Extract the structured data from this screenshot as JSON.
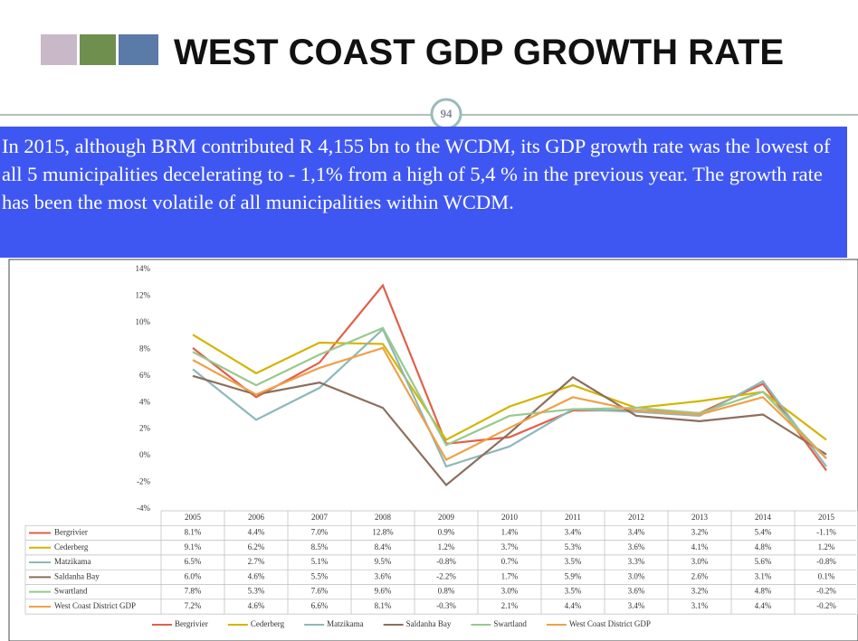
{
  "header": {
    "title": "WEST COAST GDP GROWTH RATE",
    "page_number": "94",
    "summary": "In 2015, although BRM contributed R 4,155 bn to the WCDM, its GDP growth rate was the lowest of all 5 municipalities decelerating to - 1,1% from a high of 5,4 % in the previous year.  The growth rate has been the most volatile of all municipalities within WCDM."
  },
  "chart_data": {
    "type": "line",
    "categories": [
      "2005",
      "2006",
      "2007",
      "2008",
      "2009",
      "2010",
      "2011",
      "2012",
      "2013",
      "2014",
      "2015"
    ],
    "ylim": [
      -4,
      14
    ],
    "yticks": [
      {
        "value": -4,
        "label": "-4%"
      },
      {
        "value": -2,
        "label": "-2%"
      },
      {
        "value": 0,
        "label": "0%"
      },
      {
        "value": 2,
        "label": "2%"
      },
      {
        "value": 4,
        "label": "4%"
      },
      {
        "value": 6,
        "label": "6%"
      },
      {
        "value": 8,
        "label": "8%"
      },
      {
        "value": 10,
        "label": "10%"
      },
      {
        "value": 12,
        "label": "12%"
      },
      {
        "value": 14,
        "label": "14%"
      }
    ],
    "grid": false,
    "legend": "bottom",
    "series": [
      {
        "name": "Bergrivier",
        "color": "#e0604a",
        "values": [
          8.1,
          4.4,
          7.0,
          12.8,
          0.9,
          1.4,
          3.4,
          3.4,
          3.2,
          5.4,
          -1.1
        ],
        "value_labels": [
          "8.1%",
          "4.4%",
          "7.0%",
          "12.8%",
          "0.9%",
          "1.4%",
          "3.4%",
          "3.4%",
          "3.2%",
          "5.4%",
          "-1.1%"
        ]
      },
      {
        "name": "Cederberg",
        "color": "#d4b400",
        "values": [
          9.1,
          6.2,
          8.5,
          8.4,
          1.2,
          3.7,
          5.3,
          3.6,
          4.1,
          4.8,
          1.2
        ],
        "value_labels": [
          "9.1%",
          "6.2%",
          "8.5%",
          "8.4%",
          "1.2%",
          "3.7%",
          "5.3%",
          "3.6%",
          "4.1%",
          "4.8%",
          "1.2%"
        ]
      },
      {
        "name": "Matzikama",
        "color": "#8db8b8",
        "values": [
          6.5,
          2.7,
          5.1,
          9.5,
          -0.8,
          0.7,
          3.5,
          3.3,
          3.0,
          5.6,
          -0.8
        ],
        "value_labels": [
          "6.5%",
          "2.7%",
          "5.1%",
          "9.5%",
          "-0.8%",
          "0.7%",
          "3.5%",
          "3.3%",
          "3.0%",
          "5.6%",
          "-0.8%"
        ]
      },
      {
        "name": "Saldanha Bay",
        "color": "#8c6e5e",
        "values": [
          6.0,
          4.6,
          5.5,
          3.6,
          -2.2,
          1.7,
          5.9,
          3.0,
          2.6,
          3.1,
          0.1
        ],
        "value_labels": [
          "6.0%",
          "4.6%",
          "5.5%",
          "3.6%",
          "-2.2%",
          "1.7%",
          "5.9%",
          "3.0%",
          "2.6%",
          "3.1%",
          "0.1%"
        ]
      },
      {
        "name": "Swartland",
        "color": "#9ac88f",
        "values": [
          7.8,
          5.3,
          7.6,
          9.6,
          0.8,
          3.0,
          3.5,
          3.6,
          3.2,
          4.8,
          -0.2
        ],
        "value_labels": [
          "7.8%",
          "5.3%",
          "7.6%",
          "9.6%",
          "0.8%",
          "3.0%",
          "3.5%",
          "3.6%",
          "3.2%",
          "4.8%",
          "-0.2%"
        ]
      },
      {
        "name": "West Coast District GDP",
        "color": "#f0a04a",
        "values": [
          7.2,
          4.6,
          6.6,
          8.1,
          -0.3,
          2.1,
          4.4,
          3.4,
          3.1,
          4.4,
          -0.2
        ],
        "value_labels": [
          "7.2%",
          "4.6%",
          "6.6%",
          "8.1%",
          "-0.3%",
          "2.1%",
          "4.4%",
          "3.4%",
          "3.1%",
          "4.4%",
          "-0.2%"
        ]
      }
    ]
  }
}
